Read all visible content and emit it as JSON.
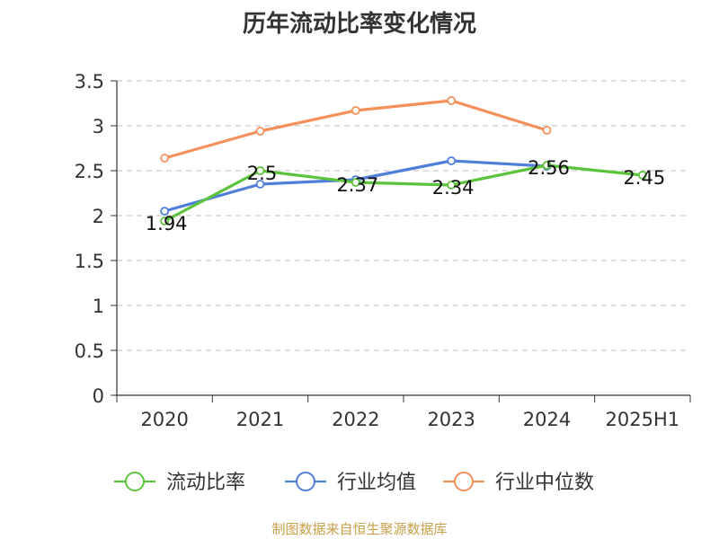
{
  "chart_data": {
    "type": "line",
    "title": "历年流动比率变化情况",
    "categories": [
      "2020",
      "2021",
      "2022",
      "2023",
      "2024",
      "2025H1"
    ],
    "ylim": [
      0,
      3.5
    ],
    "yticks": [
      "0",
      "0.5",
      "1",
      "1.5",
      "2",
      "2.5",
      "3",
      "3.5"
    ],
    "grid": true,
    "legend_position": "bottom",
    "series": [
      {
        "name": "流动比率",
        "color": "#5cc33c",
        "values": [
          1.94,
          2.5,
          2.37,
          2.34,
          2.56,
          2.45
        ],
        "labels": [
          "1.94",
          "2.5",
          "2.37",
          "2.34",
          "2.56",
          "2.45"
        ]
      },
      {
        "name": "行业均值",
        "color": "#4f7fd9",
        "values": [
          2.05,
          2.35,
          2.4,
          2.61,
          2.55,
          null
        ]
      },
      {
        "name": "行业中位数",
        "color": "#f4905a",
        "values": [
          2.64,
          2.94,
          3.17,
          3.28,
          2.95,
          null
        ]
      }
    ]
  },
  "footer": {
    "source": "制图数据来自恒生聚源数据库"
  }
}
